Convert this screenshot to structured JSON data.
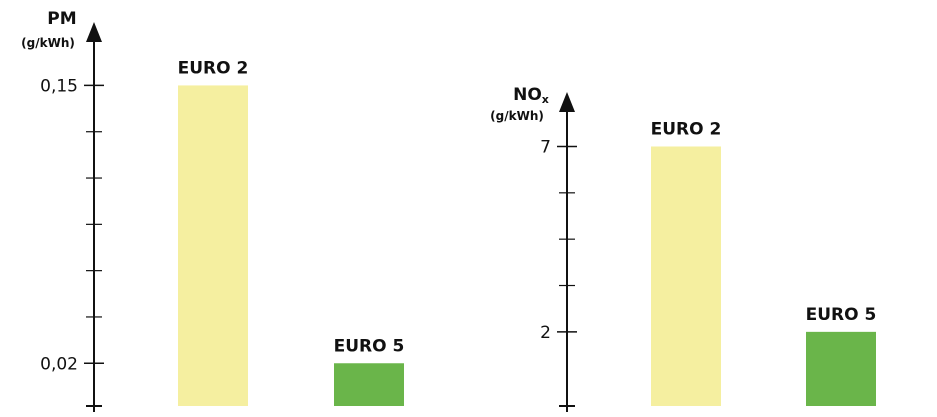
{
  "colors": {
    "euro2": "#f5efa0",
    "euro5": "#6ab54a",
    "axis": "#111111"
  },
  "chart_data": [
    {
      "type": "bar",
      "categories": [
        "EURO 2",
        "EURO 5"
      ],
      "values": [
        0.15,
        0.02
      ],
      "ylabel": "PM",
      "yunit": "(g/kWh)",
      "yticks": [
        "0,15",
        "0,02"
      ],
      "ytick_values": [
        0.15,
        0.02
      ],
      "ylim": [
        0,
        0.175
      ]
    },
    {
      "type": "bar",
      "categories": [
        "EURO 2",
        "EURO 5"
      ],
      "values": [
        7,
        2
      ],
      "ylabel": "NOx",
      "yunit": "(g/kWh)",
      "yticks": [
        "7",
        "2"
      ],
      "ytick_values": [
        7,
        2
      ],
      "ylim": [
        0,
        8.2
      ]
    }
  ]
}
